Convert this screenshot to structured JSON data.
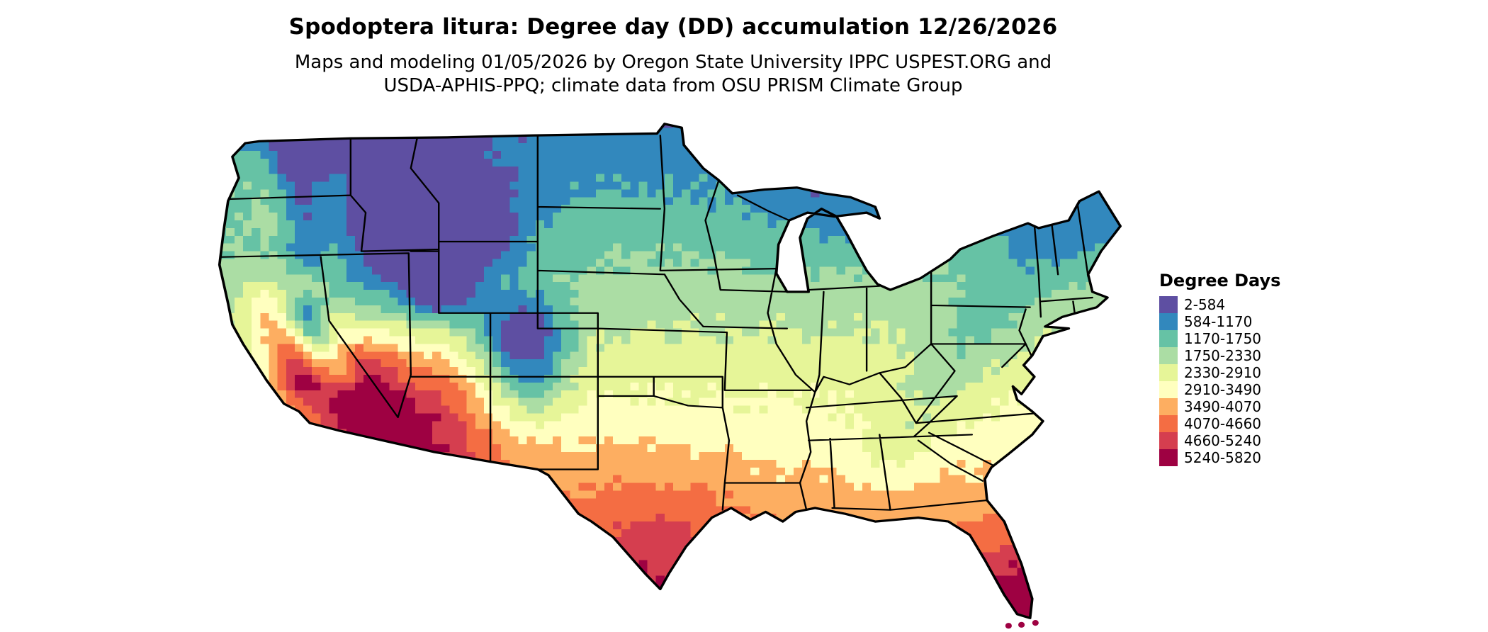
{
  "header": {
    "title": "Spodoptera litura: Degree day (DD) accumulation 12/26/2026",
    "subtitle_line1": "Maps and modeling 01/05/2026 by Oregon State University IPPC USPEST.ORG and",
    "subtitle_line2": "USDA-APHIS-PPQ; climate data from OSU PRISM Climate Group"
  },
  "legend": {
    "title": "Degree Days",
    "items": [
      {
        "label": "2-584",
        "color": "#5e4fa2"
      },
      {
        "label": "584-1170",
        "color": "#3288bd"
      },
      {
        "label": "1170-1750",
        "color": "#66c2a5"
      },
      {
        "label": "1750-2330",
        "color": "#abdda4"
      },
      {
        "label": "2330-2910",
        "color": "#e6f598"
      },
      {
        "label": "2910-3490",
        "color": "#ffffbf"
      },
      {
        "label": "3490-4070",
        "color": "#fdae61"
      },
      {
        "label": "4070-4660",
        "color": "#f46d43"
      },
      {
        "label": "4660-5240",
        "color": "#d53e4f"
      },
      {
        "label": "5240-5820",
        "color": "#9e0142"
      }
    ]
  },
  "map": {
    "bin_breaks": [
      2,
      584,
      1170,
      1750,
      2330,
      2910,
      3490,
      4070,
      4660,
      5240,
      5820
    ],
    "border_color": "#000000",
    "background_color": "#ffffff"
  }
}
